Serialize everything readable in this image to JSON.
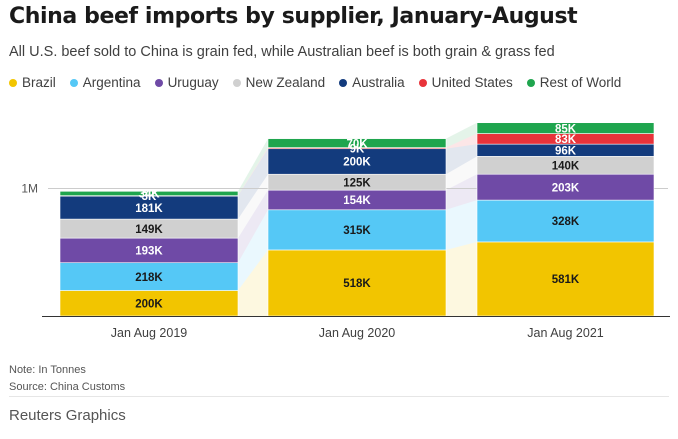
{
  "title": "China beef imports by supplier, January-August",
  "subtitle": "All U.S. beef sold to China is grain fed, while Australian beef is both grain & grass fed",
  "note": "Note: In Tonnes",
  "source": "Source: China Customs",
  "credit": "Reuters Graphics",
  "chart_data": {
    "type": "bar",
    "stacked": true,
    "categories": [
      "Jan Aug 2019",
      "Jan Aug 2020",
      "Jan Aug 2021"
    ],
    "y_tick_labels": [
      {
        "value": 1000,
        "label": "1M"
      }
    ],
    "ylim": [
      0,
      1650
    ],
    "series": [
      {
        "name": "Brazil",
        "color": "#f2c500",
        "values": [
          200,
          518,
          581
        ],
        "labels": [
          "200K",
          "518K",
          "581K"
        ]
      },
      {
        "name": "Argentina",
        "color": "#55c8f6",
        "values": [
          218,
          315,
          328
        ],
        "labels": [
          "218K",
          "315K",
          "328K"
        ]
      },
      {
        "name": "Uruguay",
        "color": "#6f4aa6",
        "values": [
          193,
          154,
          203
        ],
        "labels": [
          "193K",
          "154K",
          "203K"
        ]
      },
      {
        "name": "New Zealand",
        "color": "#d0d0d0",
        "values": [
          149,
          125,
          140
        ],
        "labels": [
          "149K",
          "125K",
          "140K"
        ]
      },
      {
        "name": "Australia",
        "color": "#133b7d",
        "values": [
          181,
          200,
          96
        ],
        "labels": [
          "181K",
          "200K",
          "96K"
        ]
      },
      {
        "name": "United States",
        "color": "#e8333a",
        "values": [
          3,
          9,
          83
        ],
        "labels": [
          "3K",
          "9K",
          "83K"
        ]
      },
      {
        "name": "Rest of World",
        "color": "#1fa54e",
        "values": [
          34,
          70,
          85
        ],
        "labels": [
          "34K",
          "70K",
          "85K"
        ]
      }
    ]
  }
}
